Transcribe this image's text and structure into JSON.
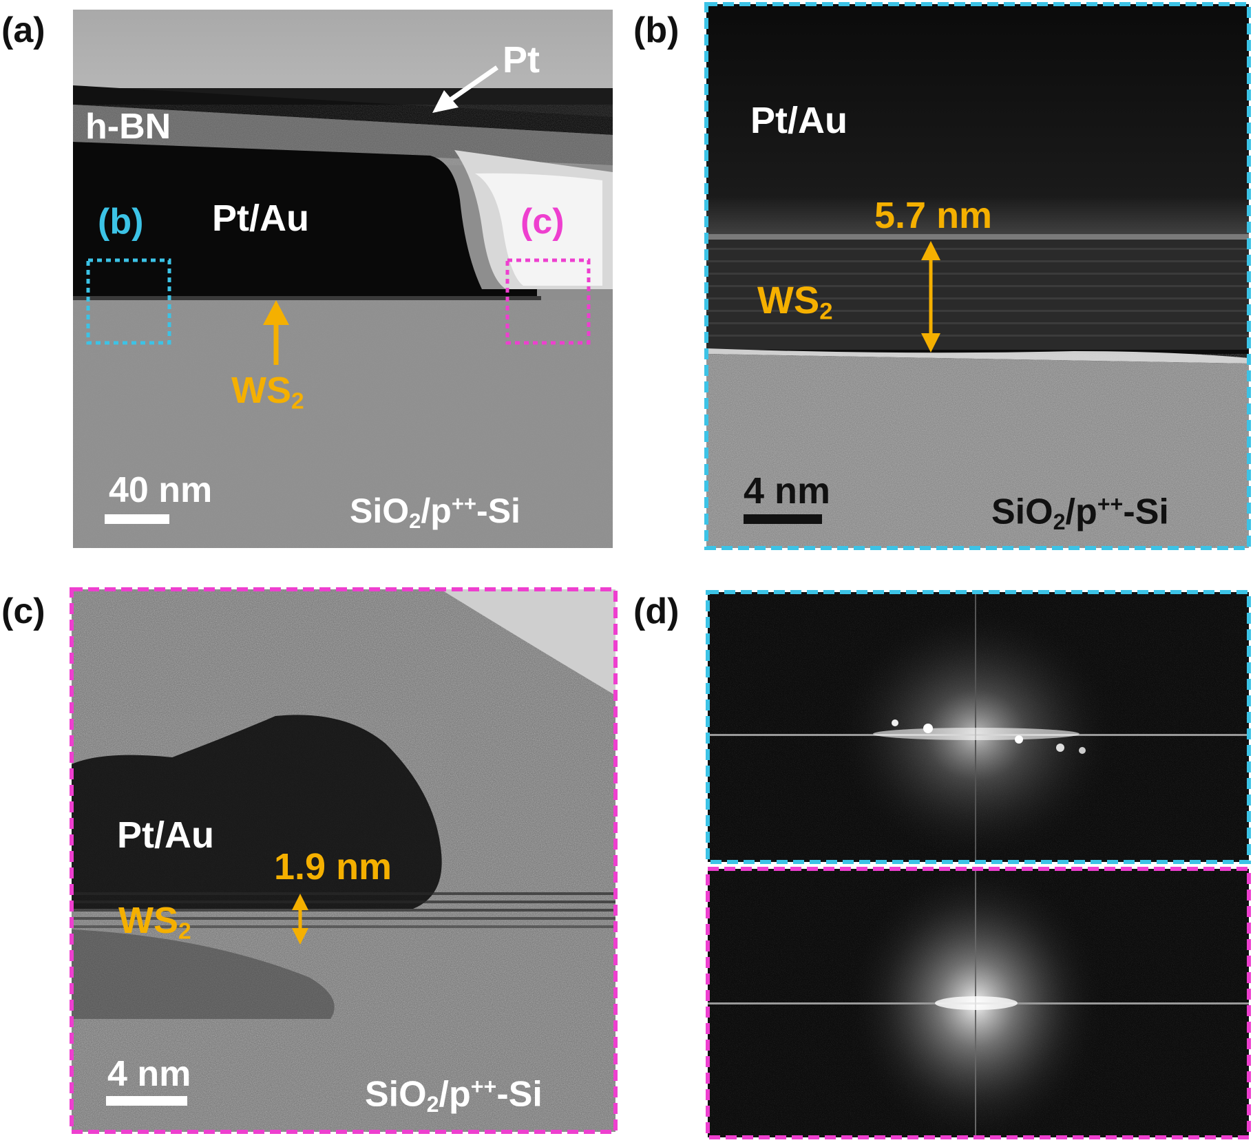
{
  "panels": {
    "a": {
      "letter": "(a)",
      "pt": "Pt",
      "hbn": "h-BN",
      "ptau": "Pt/Au",
      "box_b": "(b)",
      "box_c": "(c)",
      "ws2_main": "WS",
      "ws2_sub": "2",
      "scale": "40 nm",
      "substrate_a": "SiO",
      "substrate_sub": "2",
      "substrate_b": "/p",
      "substrate_sup": "++",
      "substrate_c": "-Si"
    },
    "b": {
      "letter": "(b)",
      "ptau": "Pt/Au",
      "thickness": "5.7 nm",
      "ws2_main": "WS",
      "ws2_sub": "2",
      "scale": "4 nm",
      "substrate_a": "SiO",
      "substrate_sub": "2",
      "substrate_b": "/p",
      "substrate_sup": "++",
      "substrate_c": "-Si"
    },
    "c": {
      "letter": "(c)",
      "ptau": "Pt/Au",
      "thickness": "1.9 nm",
      "ws2_main": "WS",
      "ws2_sub": "2",
      "scale": "4 nm",
      "substrate_a": "SiO",
      "substrate_sub": "2",
      "substrate_b": "/p",
      "substrate_sup": "++",
      "substrate_c": "-Si"
    },
    "d": {
      "letter": "(d)"
    }
  },
  "colors": {
    "highlight_b": "#3cc3e6",
    "highlight_c": "#ee3fcf",
    "annotation": "#f5b000"
  }
}
